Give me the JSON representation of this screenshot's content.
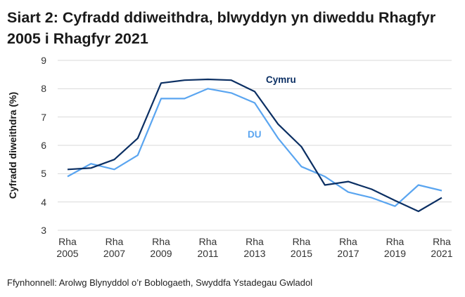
{
  "title": "Siart 2: Cyfradd ddiweithdra, blwyddyn yn diweddu Rhagfyr 2005 i Rhagfyr 2021",
  "source": "Ffynhonnell: Arolwg Blynyddol o’r Boblogaeth, Swyddfa Ystadegau Gwladol",
  "colors": {
    "cymru": "#0b2f63",
    "du": "#5aa5f0",
    "grid": "#d9d9d9"
  },
  "chart_data": {
    "type": "line",
    "title": "Siart 2: Cyfradd ddiweithdra, blwyddyn yn diweddu Rhagfyr 2005 i Rhagfyr 2021",
    "xlabel": "",
    "ylabel": "Cyfradd diweithdra (%)",
    "ylim": [
      3,
      9
    ],
    "yticks": [
      "3",
      "4",
      "5",
      "6",
      "7",
      "8",
      "9"
    ],
    "grid": true,
    "legend": "inline labels",
    "x": [
      "2005",
      "2006",
      "2007",
      "2008",
      "2009",
      "2010",
      "2011",
      "2012",
      "2013",
      "2014",
      "2015",
      "2016",
      "2017",
      "2018",
      "2019",
      "2020",
      "2021"
    ],
    "xtick_labels": [
      {
        "line1": "Rha",
        "line2": "2005"
      },
      {
        "line1": "Rha",
        "line2": "2007"
      },
      {
        "line1": "Rha",
        "line2": "2009"
      },
      {
        "line1": "Rha",
        "line2": "2011"
      },
      {
        "line1": "Rha",
        "line2": "2013"
      },
      {
        "line1": "Rha",
        "line2": "2015"
      },
      {
        "line1": "Rha",
        "line2": "2017"
      },
      {
        "line1": "Rha",
        "line2": "2019"
      },
      {
        "line1": "Rha",
        "line2": "2021"
      }
    ],
    "series": [
      {
        "name": "Cymru",
        "color": "#0b2f63",
        "values": [
          5.15,
          5.2,
          5.5,
          6.25,
          8.2,
          8.3,
          8.33,
          8.3,
          7.9,
          6.75,
          5.95,
          4.6,
          4.72,
          4.45,
          4.05,
          3.67,
          4.15
        ]
      },
      {
        "name": "DU",
        "color": "#5aa5f0",
        "values": [
          4.9,
          5.35,
          5.15,
          5.65,
          7.65,
          7.65,
          8.0,
          7.85,
          7.5,
          6.25,
          5.25,
          4.9,
          4.35,
          4.15,
          3.85,
          4.6,
          4.4
        ]
      }
    ],
    "annotations": [
      {
        "text": "Cymru",
        "series": "Cymru"
      },
      {
        "text": "DU",
        "series": "DU"
      }
    ]
  }
}
